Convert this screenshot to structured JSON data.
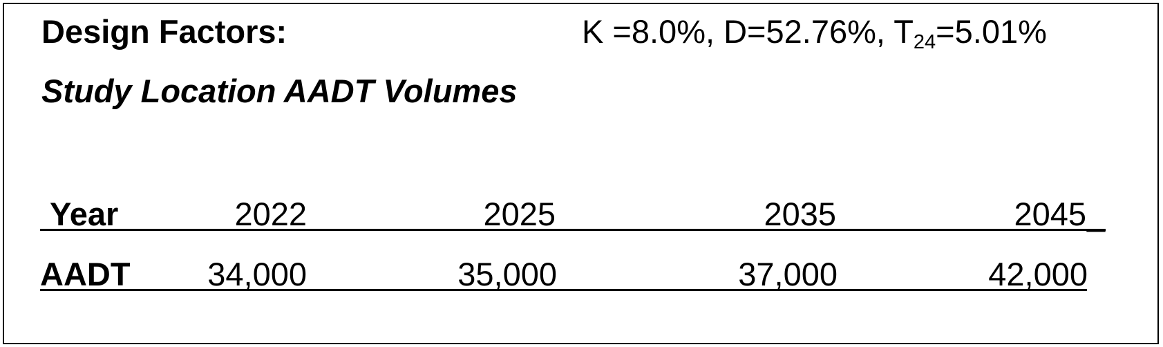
{
  "header": {
    "design_factors_label": "Design Factors:",
    "k_factor": "K =8.0%,",
    "d_factor": "D=52.76%,",
    "t_factor_prefix": "T",
    "t_factor_subscript": "24",
    "t_factor_value": "=5.01%"
  },
  "subtitle": "Study Location AADT Volumes",
  "table": {
    "year_label": "Year",
    "years": [
      "2022",
      "2025",
      "2035",
      "2045"
    ],
    "year_trailing_underscore": "_",
    "aadt_label": "AADT",
    "aadt_values": [
      "34,000",
      "35,000",
      "37,000",
      "42,000"
    ]
  }
}
